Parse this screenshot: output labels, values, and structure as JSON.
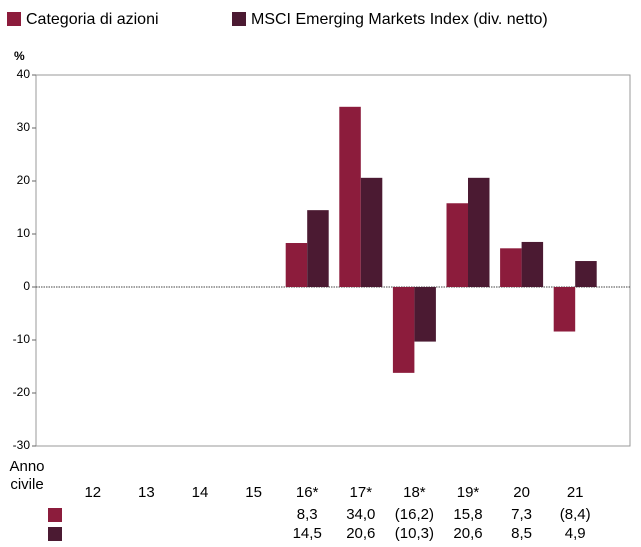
{
  "chart_data": {
    "type": "bar",
    "y_label": "%",
    "table_label": "Anno civile",
    "categories": [
      "12",
      "13",
      "14",
      "15",
      "16*",
      "17*",
      "18*",
      "19*",
      "20",
      "21"
    ],
    "series": [
      {
        "name": "Categoria di azioni",
        "color": "#8c1c3c",
        "values": [
          null,
          null,
          null,
          null,
          8.3,
          34.0,
          -16.2,
          15.8,
          7.3,
          -8.4
        ],
        "value_labels": [
          null,
          null,
          null,
          null,
          "8,3",
          "34,0",
          "(16,2)",
          "15,8",
          "7,3",
          "(8,4)"
        ]
      },
      {
        "name": "MSCI Emerging Markets Index (div. netto)",
        "color": "#4b1a32",
        "values": [
          null,
          null,
          null,
          null,
          14.5,
          20.6,
          -10.3,
          20.6,
          8.5,
          4.9
        ],
        "value_labels": [
          null,
          null,
          null,
          null,
          "14,5",
          "20,6",
          "(10,3)",
          "20,6",
          "8,5",
          "4,9"
        ]
      }
    ],
    "ylim": [
      -30,
      40
    ],
    "yticks": [
      -30,
      -20,
      -10,
      0,
      10,
      20,
      30,
      40
    ]
  }
}
